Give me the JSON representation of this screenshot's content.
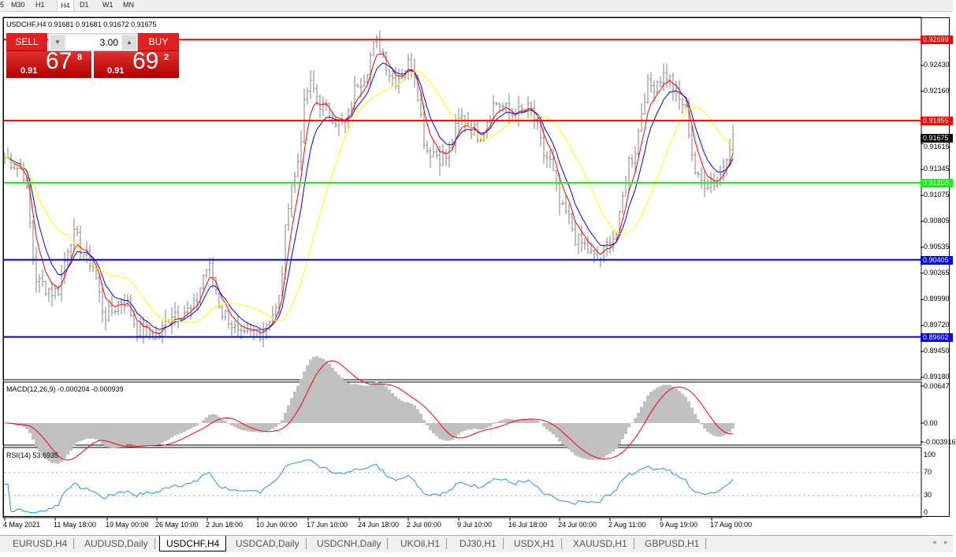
{
  "timeframes": [
    "5",
    "M30",
    "H1",
    "H4",
    "D1",
    "W1",
    "MN"
  ],
  "active_timeframe": "H4",
  "symbol_header": "USDCHF,H4  0.91681 0.91681 0.91672 0.91675",
  "trade_panel": {
    "sell_label": "SELL",
    "buy_label": "BUY",
    "lot": "3.00",
    "sell_prefix": "0.91",
    "sell_big": "67",
    "sell_pip": "8",
    "buy_prefix": "0.91",
    "buy_big": "69",
    "buy_pip": "2"
  },
  "price_axis": [
    "0.92430",
    "0.92160",
    "0.91615",
    "0.91345",
    "0.91075",
    "0.90805",
    "0.90535",
    "0.90265",
    "0.89990",
    "0.89720",
    "0.89450",
    "0.89180"
  ],
  "horizontal_lines": [
    {
      "price": "0.92699",
      "color": "#ff0000"
    },
    {
      "price": "0.91855",
      "color": "#ff0000"
    },
    {
      "price": "0.91208",
      "color": "#00ff00"
    },
    {
      "price": "0.90405",
      "color": "#0000ff"
    },
    {
      "price": "0.89602",
      "color": "#0000ff"
    }
  ],
  "current_price": "0.91675",
  "macd": {
    "label": "MACD(12,26,9) -0.000204 -0.000939",
    "axis": [
      "0.00647",
      "0.00",
      "-0.003916"
    ]
  },
  "rsi": {
    "label": "RSI(14) 53.6935",
    "axis": [
      "100",
      "70",
      "30",
      "0"
    ]
  },
  "dates": [
    "4 May 2021",
    "11 May 18:00",
    "19 May 00:00",
    "26 May 10:00",
    "2 Jun 18:00",
    "10 Jun 00:00",
    "17 Jun 10:00",
    "24 Jun 18:00",
    "2 Jul 00:00",
    "9 Jul 10:00",
    "16 Jul 18:00",
    "24 Jul 00:00",
    "2 Aug 11:00",
    "9 Aug 19:00",
    "17 Aug 00:00"
  ],
  "tabs": [
    "EURUSD,H4",
    "AUDUSD,Daily",
    "USDCHF,H4",
    "USDCAD,Daily",
    "USDCNH,Daily",
    "UKOil,H1",
    "DJ30,H1",
    "USDX,H1",
    "XAUUSD,H1",
    "GBPUSD,H1"
  ],
  "active_tab": "USDCHF,H4",
  "chart_data": {
    "type": "ohlc",
    "symbol": "USDCHF",
    "timeframe": "H4",
    "approx_close_path": [
      0.9147,
      0.9135,
      0.9016,
      0.9007,
      0.9065,
      0.904,
      0.8983,
      0.8999,
      0.8966,
      0.8962,
      0.8987,
      0.8987,
      0.9032,
      0.8983,
      0.8958,
      0.8966,
      0.8987,
      0.9122,
      0.9221,
      0.9196,
      0.918,
      0.9229,
      0.9266,
      0.9229,
      0.9245,
      0.9155,
      0.9147,
      0.9188,
      0.9172,
      0.9204,
      0.9192,
      0.9196,
      0.9147,
      0.909,
      0.9057,
      0.904,
      0.9065,
      0.9147,
      0.9221,
      0.9233,
      0.9204,
      0.9122,
      0.9122,
      0.9167
    ],
    "colors": {
      "ma_fast": "#ff0000",
      "ma_mid": "#0000ff",
      "ma_slow": "#ffff00",
      "bars": "#808080",
      "macd_hist": "#c0c0c0",
      "macd_signal": "#ff0000",
      "rsi": "#1e90ff"
    }
  }
}
